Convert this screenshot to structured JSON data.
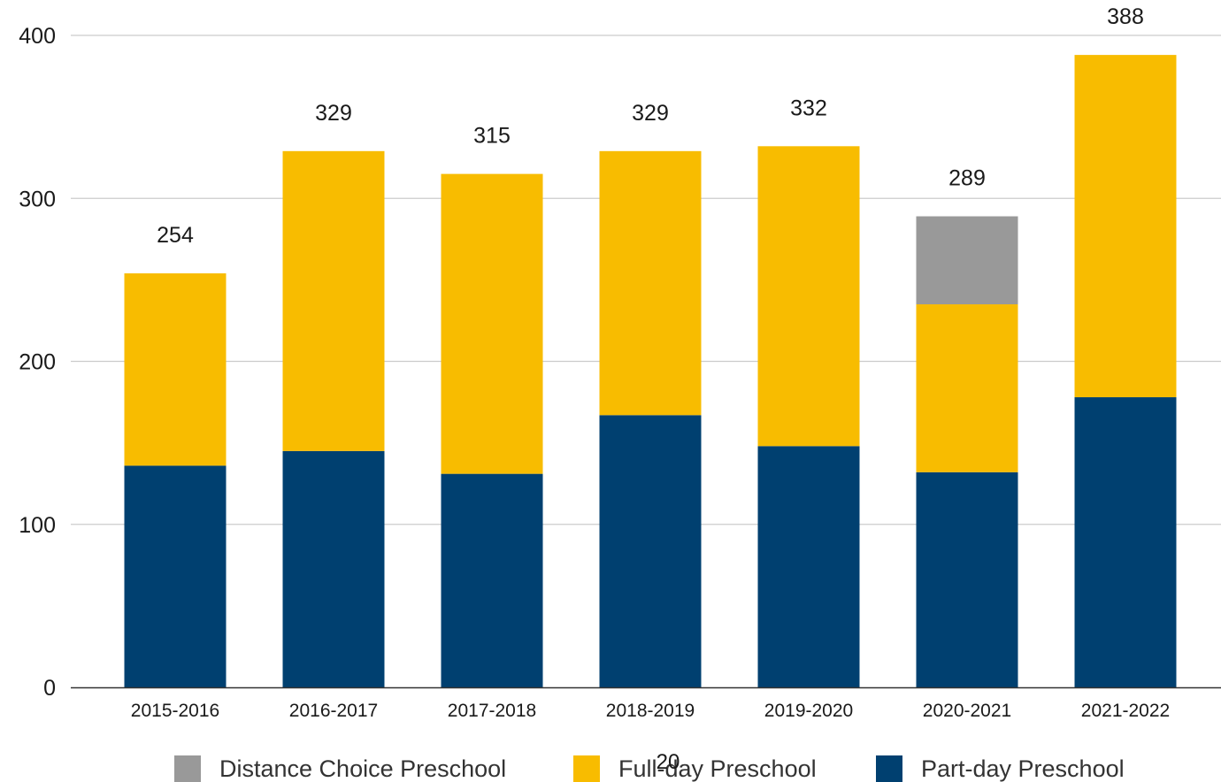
{
  "chart_data": {
    "type": "bar",
    "stacked": true,
    "categories": [
      "2015-2016",
      "2016-2017",
      "2017-2018",
      "2018-2019",
      "2019-2020",
      "2020-2021",
      "2021-2022"
    ],
    "series": [
      {
        "name": "Part-day Preschool",
        "color": "#004070",
        "values": [
          136,
          145,
          131,
          167,
          148,
          132,
          178
        ]
      },
      {
        "name": "Full-day Preschool",
        "color": "#F8BC00",
        "values": [
          118,
          184,
          184,
          162,
          184,
          103,
          210
        ]
      },
      {
        "name": "Distance Choice Preschool",
        "color": "#999999",
        "values": [
          0,
          0,
          0,
          0,
          0,
          54,
          0
        ]
      }
    ],
    "totals": [
      "254",
      "329",
      "315",
      "329",
      "332",
      "289",
      "388"
    ],
    "ylim": [
      0,
      400
    ],
    "yticks": [
      "0",
      "100",
      "200",
      "300",
      "400"
    ],
    "grid": true,
    "legend_position": "bottom",
    "legend_order": [
      "Distance Choice Preschool",
      "Full-day Preschool",
      "Part-day Preschool"
    ],
    "title": "",
    "xlabel": "",
    "ylabel": ""
  },
  "page_number": "20"
}
